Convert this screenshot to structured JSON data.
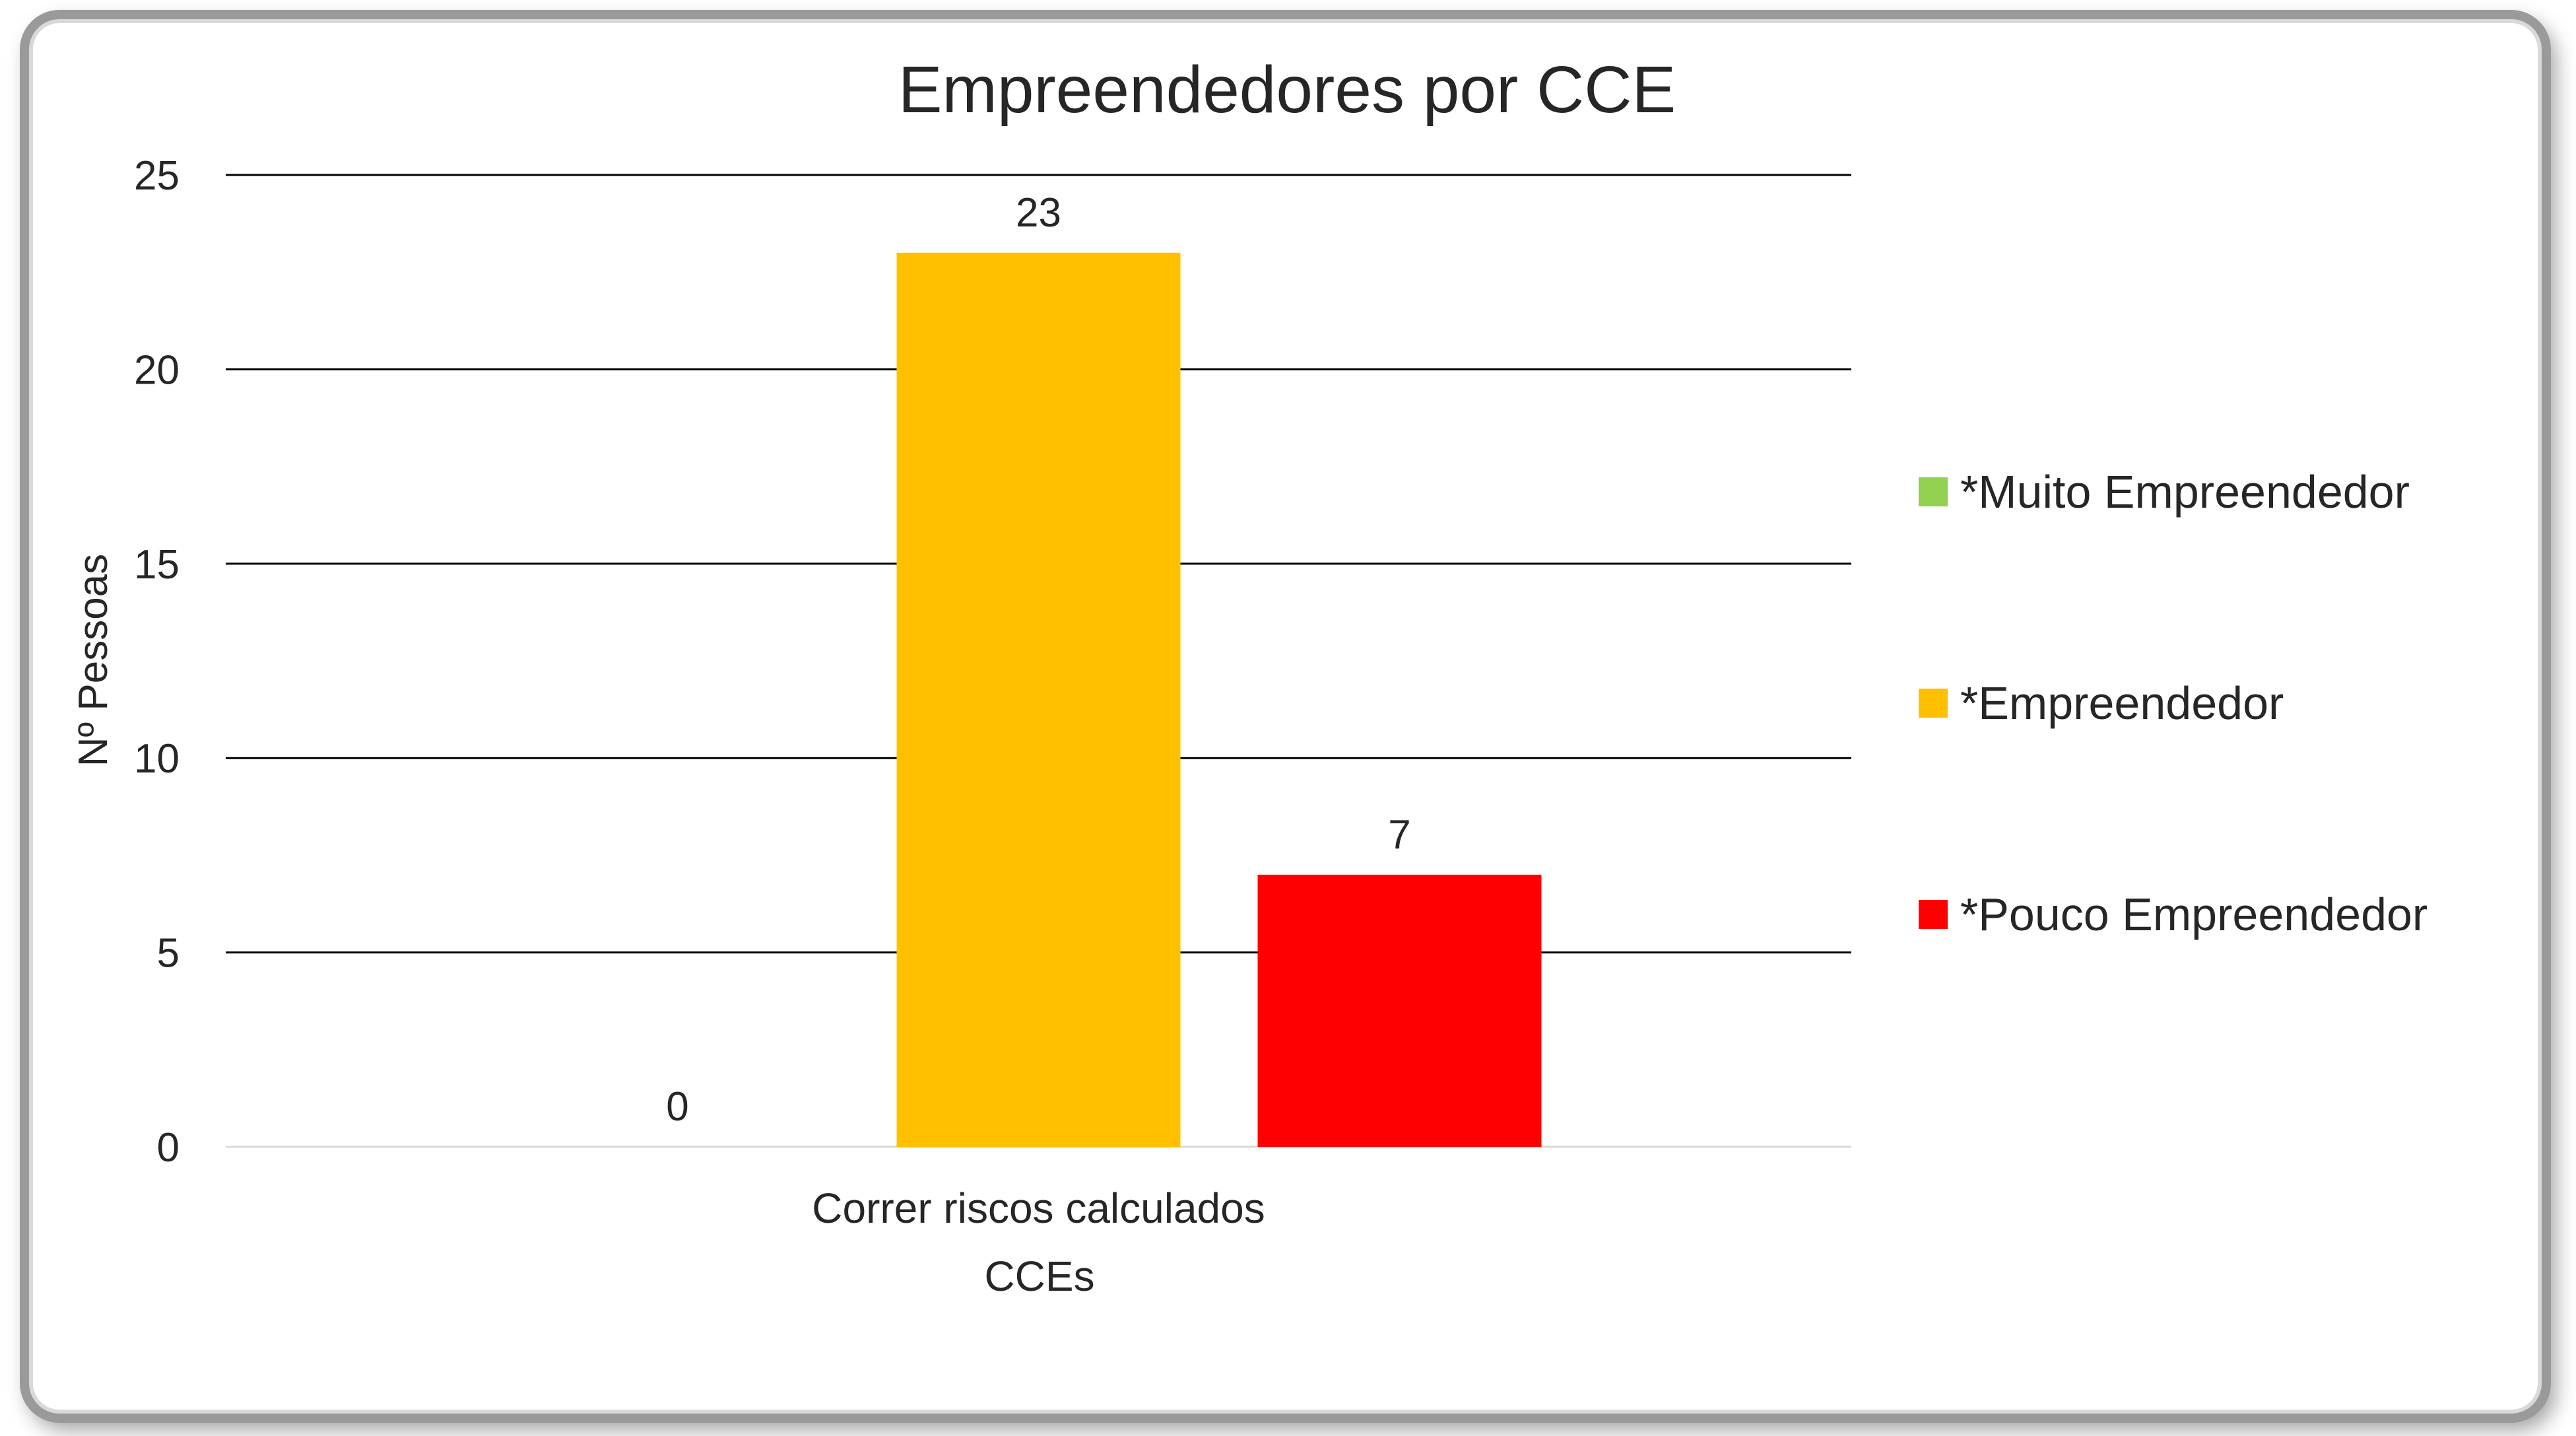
{
  "chart_data": {
    "type": "bar",
    "title": "Empreendedores por CCE",
    "xlabel": "CCEs",
    "ylabel": "Nº Pessoas",
    "categories": [
      "Correr riscos calculados"
    ],
    "series": [
      {
        "name": "*Muito Empreendedor",
        "values": [
          0
        ],
        "color": "#92D050"
      },
      {
        "name": "*Empreendedor",
        "values": [
          23
        ],
        "color": "#FFC000"
      },
      {
        "name": "*Pouco Empreendedor",
        "values": [
          7
        ],
        "color": "#FF0000"
      }
    ],
    "ylim": [
      0,
      25
    ],
    "yticks": [
      "0",
      "5",
      "10",
      "15",
      "20",
      "25"
    ],
    "grid": true,
    "legend_position": "right"
  }
}
